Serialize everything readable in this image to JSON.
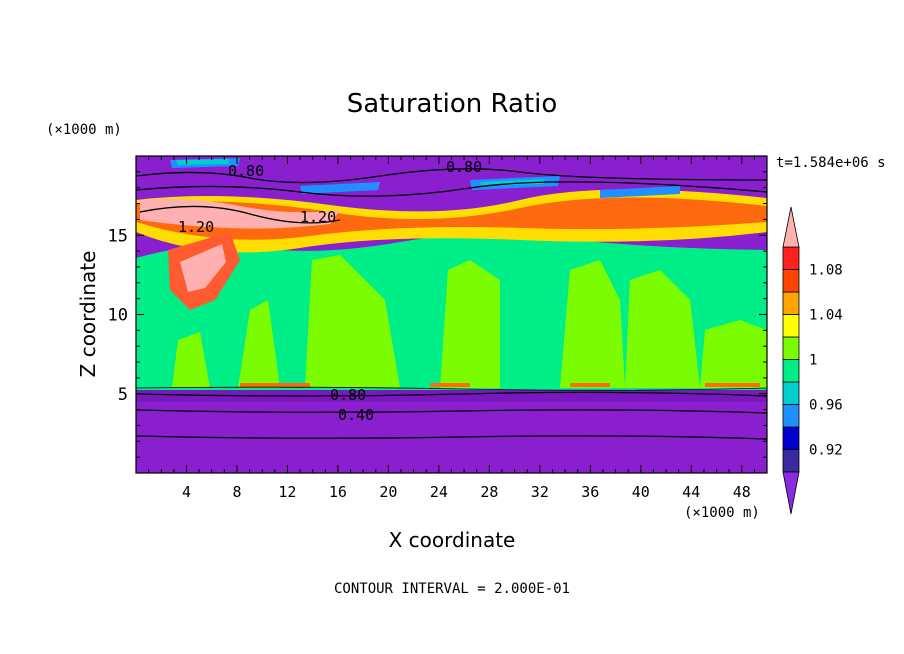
{
  "chart_data": {
    "type": "heatmap",
    "title": "Saturation Ratio",
    "xlabel": "X coordinate",
    "ylabel": "Z coordinate",
    "x_unit": "(×1000 m)",
    "y_unit": "(×1000 m)",
    "time_label": "t=1.584e+06 s",
    "footer": "CONTOUR INTERVAL = 2.000E-01",
    "xlim": [
      0,
      50
    ],
    "ylim": [
      0,
      20
    ],
    "x_ticks": [
      "4",
      "8",
      "12",
      "16",
      "20",
      "24",
      "28",
      "32",
      "36",
      "40",
      "44",
      "48"
    ],
    "y_ticks": [
      "5",
      "10",
      "15"
    ],
    "colorbar": {
      "levels": [
        0.9,
        0.92,
        0.94,
        0.96,
        0.98,
        1.0,
        1.02,
        1.04,
        1.06,
        1.08,
        1.1
      ],
      "labels": [
        "0.92",
        "0.96",
        "1",
        "1.04",
        "1.08"
      ],
      "colors": [
        "#8a2be2",
        "#3a2aa0",
        "#0000cd",
        "#1e90ff",
        "#00ced1",
        "#00ee88",
        "#7cfc00",
        "#ffff00",
        "#ffa500",
        "#ff4500",
        "#ff2020",
        "#ffb0b0"
      ],
      "extend": "both"
    },
    "contour_labels": [
      "0.80",
      "0.80",
      "1.20",
      "1.20",
      "0.80",
      "0.40"
    ]
  }
}
